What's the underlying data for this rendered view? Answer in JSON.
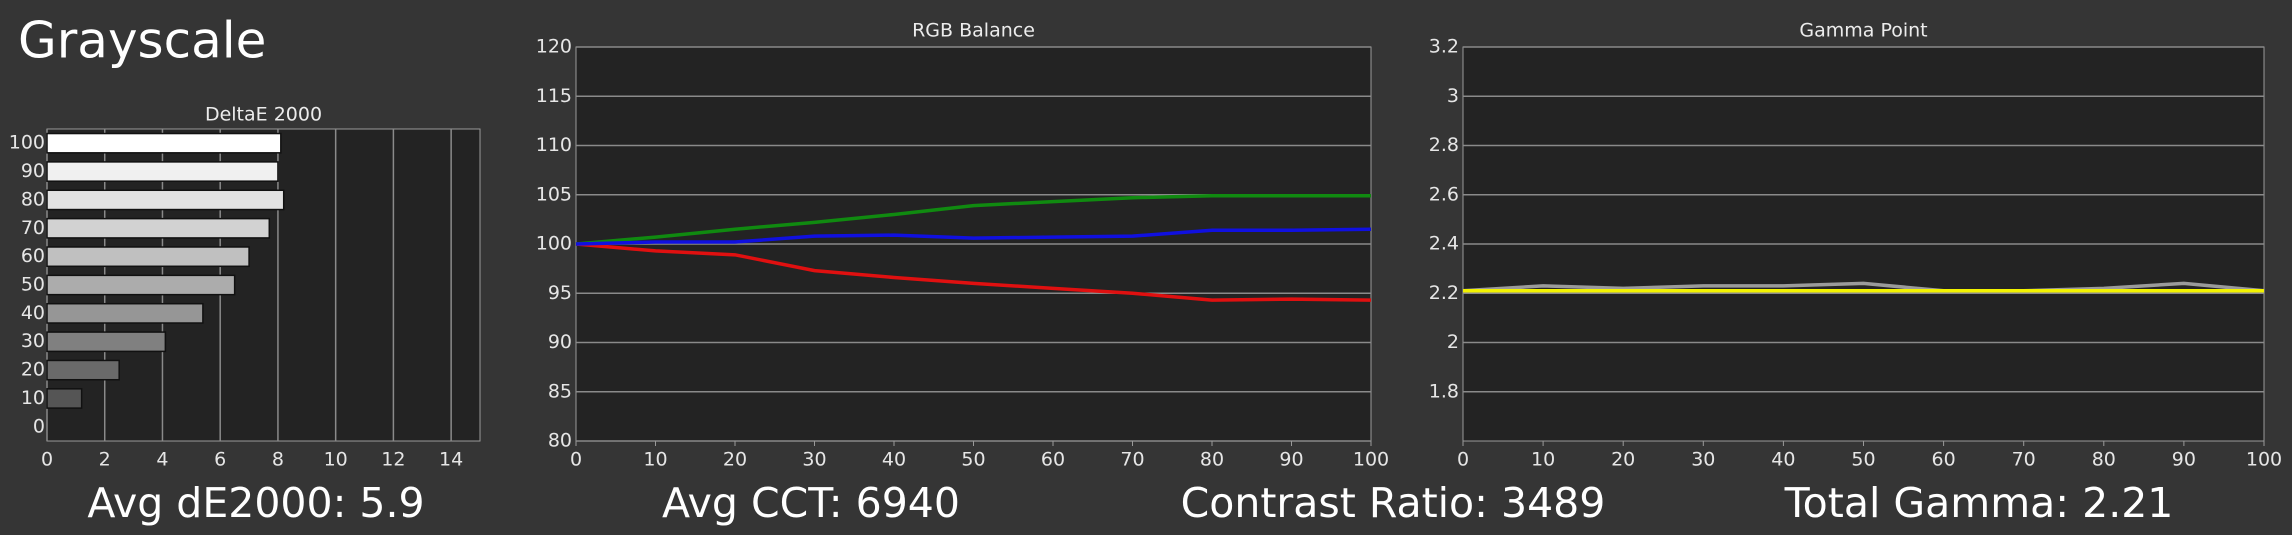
{
  "header": {
    "title": "Grayscale"
  },
  "stats": [
    "Avg dE2000: 5.9",
    "Avg CCT: 6940",
    "Contrast Ratio: 3489",
    "Total Gamma: 2.21"
  ],
  "chart_data": [
    {
      "type": "bar",
      "orientation": "horizontal",
      "title": "DeltaE 2000",
      "categories": [
        "100",
        "90",
        "80",
        "70",
        "60",
        "50",
        "40",
        "30",
        "20",
        "10",
        "0"
      ],
      "values": [
        8.1,
        8.0,
        8.2,
        7.7,
        7.0,
        6.5,
        5.4,
        4.1,
        2.5,
        1.2,
        0
      ],
      "colors": [
        "#ffffff",
        "#f0f0f0",
        "#e2e2e2",
        "#d2d2d2",
        "#c0c0c0",
        "#acacac",
        "#969696",
        "#808080",
        "#6a6a6a",
        "#555555",
        "#404040"
      ],
      "xlim": [
        0,
        15
      ],
      "xticks": [
        0,
        2,
        4,
        6,
        8,
        10,
        12,
        14
      ],
      "grid": true
    },
    {
      "type": "line",
      "title": "RGB Balance",
      "x": [
        0,
        10,
        20,
        30,
        40,
        50,
        60,
        70,
        80,
        90,
        100
      ],
      "series": [
        {
          "color": "#e01010",
          "values": [
            100,
            99.3,
            98.9,
            97.3,
            96.6,
            96.0,
            95.5,
            95.0,
            94.3,
            94.4,
            94.3
          ]
        },
        {
          "color": "#108a10",
          "values": [
            100,
            100.7,
            101.5,
            102.2,
            103.0,
            103.9,
            104.3,
            104.7,
            104.9,
            104.9,
            104.9
          ]
        },
        {
          "color": "#1010e0",
          "values": [
            100,
            100.2,
            100.2,
            100.8,
            100.9,
            100.6,
            100.7,
            100.8,
            101.4,
            101.4,
            101.5
          ]
        }
      ],
      "xlim": [
        0,
        100
      ],
      "xticks": [
        0,
        10,
        20,
        30,
        40,
        50,
        60,
        70,
        80,
        90,
        100
      ],
      "ylim": [
        80,
        120
      ],
      "yticks": [
        80,
        85,
        90,
        95,
        100,
        105,
        110,
        115,
        120
      ],
      "grid": true
    },
    {
      "type": "line",
      "title": "Gamma Point",
      "x": [
        0,
        10,
        20,
        30,
        40,
        50,
        60,
        70,
        80,
        90,
        100
      ],
      "series": [
        {
          "color": "#9a9a9a",
          "values": [
            2.21,
            2.23,
            2.22,
            2.23,
            2.23,
            2.24,
            2.21,
            2.21,
            2.22,
            2.24,
            2.21
          ]
        },
        {
          "color": "#f2f200",
          "values": [
            2.21,
            2.21,
            2.21,
            2.21,
            2.21,
            2.21,
            2.21,
            2.21,
            2.21,
            2.21,
            2.21
          ]
        }
      ],
      "xlim": [
        0,
        100
      ],
      "xticks": [
        0,
        10,
        20,
        30,
        40,
        50,
        60,
        70,
        80,
        90,
        100
      ],
      "ylim": [
        1.6,
        3.2
      ],
      "yticks": [
        1.8,
        2,
        2.2,
        2.4,
        2.6,
        2.8,
        3,
        3.2
      ],
      "grid": true
    }
  ]
}
